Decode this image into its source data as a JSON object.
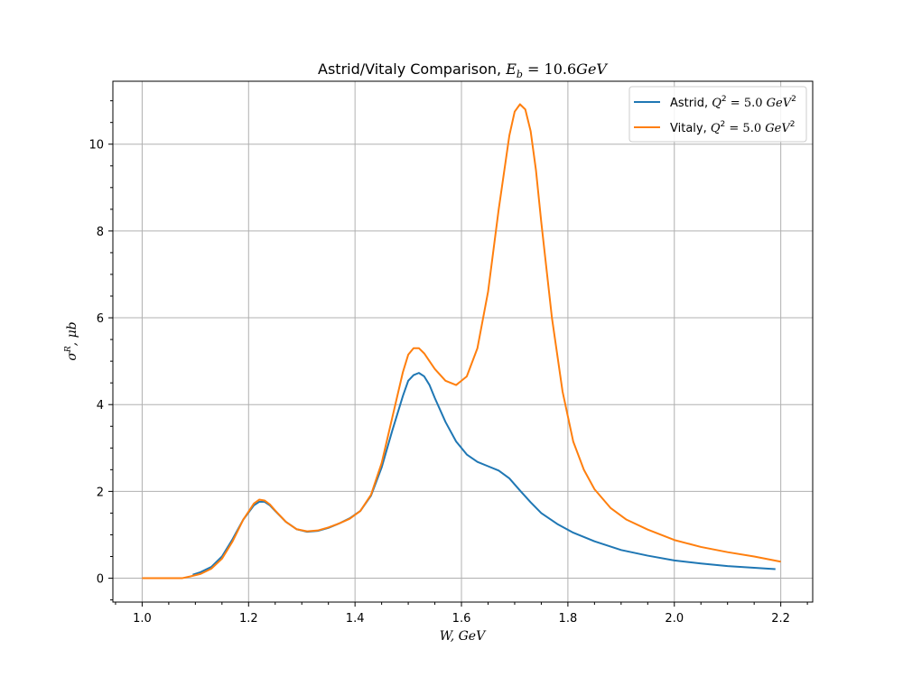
{
  "chart_data": {
    "type": "line",
    "title": "Astrid/Vitaly Comparison, E_b = 10.6GeV",
    "title_parts": {
      "prefix": "Astrid/Vitaly Comparison, ",
      "math_symbol": "E",
      "math_sub": "b",
      "math_rest": " = 10.6",
      "math_unit": "GeV"
    },
    "xlabel": "W, GeV",
    "ylabel": "σ^R, μb",
    "xlim": [
      0.945,
      2.26
    ],
    "ylim": [
      -0.55,
      11.45
    ],
    "xticks": [
      1.0,
      1.2,
      1.4,
      1.6,
      1.8,
      2.0,
      2.2
    ],
    "xtick_labels": [
      "1.0",
      "1.2",
      "1.4",
      "1.6",
      "1.8",
      "2.0",
      "2.2"
    ],
    "yticks": [
      0,
      2,
      4,
      6,
      8,
      10
    ],
    "ytick_labels": [
      "0",
      "2",
      "4",
      "6",
      "8",
      "10"
    ],
    "grid": true,
    "legend_position": "top-right",
    "series": [
      {
        "name": "Astrid, Q^2 = 5.0 GeV^2",
        "legend_prefix": "Astrid, ",
        "color": "#1f77b4",
        "x": [
          1.095,
          1.11,
          1.13,
          1.15,
          1.17,
          1.19,
          1.21,
          1.22,
          1.23,
          1.24,
          1.25,
          1.27,
          1.29,
          1.31,
          1.33,
          1.35,
          1.37,
          1.39,
          1.41,
          1.43,
          1.45,
          1.47,
          1.49,
          1.5,
          1.51,
          1.52,
          1.53,
          1.54,
          1.55,
          1.57,
          1.59,
          1.61,
          1.63,
          1.65,
          1.67,
          1.69,
          1.71,
          1.73,
          1.75,
          1.78,
          1.81,
          1.85,
          1.9,
          1.95,
          2.0,
          2.05,
          2.1,
          2.15,
          2.19
        ],
        "y": [
          0.08,
          0.14,
          0.26,
          0.5,
          0.9,
          1.35,
          1.68,
          1.76,
          1.76,
          1.68,
          1.55,
          1.3,
          1.13,
          1.07,
          1.09,
          1.16,
          1.26,
          1.38,
          1.55,
          1.9,
          2.55,
          3.4,
          4.2,
          4.55,
          4.68,
          4.73,
          4.65,
          4.45,
          4.15,
          3.6,
          3.15,
          2.85,
          2.68,
          2.58,
          2.48,
          2.3,
          2.02,
          1.75,
          1.5,
          1.25,
          1.05,
          0.85,
          0.65,
          0.52,
          0.41,
          0.34,
          0.28,
          0.24,
          0.21
        ]
      },
      {
        "name": "Vitaly, Q^2 = 5.0 GeV^2",
        "legend_prefix": "Vitaly, ",
        "color": "#ff7f0e",
        "x": [
          1.0,
          1.05,
          1.075,
          1.09,
          1.11,
          1.13,
          1.15,
          1.17,
          1.19,
          1.21,
          1.22,
          1.23,
          1.24,
          1.25,
          1.27,
          1.29,
          1.31,
          1.33,
          1.35,
          1.37,
          1.39,
          1.41,
          1.43,
          1.45,
          1.47,
          1.49,
          1.5,
          1.51,
          1.52,
          1.53,
          1.54,
          1.55,
          1.57,
          1.59,
          1.61,
          1.63,
          1.65,
          1.67,
          1.69,
          1.7,
          1.71,
          1.72,
          1.73,
          1.74,
          1.75,
          1.77,
          1.79,
          1.81,
          1.83,
          1.85,
          1.88,
          1.91,
          1.95,
          2.0,
          2.05,
          2.1,
          2.15,
          2.2
        ],
        "y": [
          0.0,
          0.0,
          0.0,
          0.04,
          0.1,
          0.22,
          0.45,
          0.85,
          1.35,
          1.72,
          1.81,
          1.79,
          1.7,
          1.56,
          1.3,
          1.13,
          1.08,
          1.1,
          1.17,
          1.26,
          1.37,
          1.55,
          1.92,
          2.65,
          3.7,
          4.75,
          5.15,
          5.3,
          5.3,
          5.18,
          5.0,
          4.82,
          4.55,
          4.45,
          4.65,
          5.3,
          6.6,
          8.5,
          10.2,
          10.75,
          10.92,
          10.8,
          10.3,
          9.4,
          8.2,
          6.0,
          4.3,
          3.15,
          2.5,
          2.05,
          1.62,
          1.35,
          1.12,
          0.88,
          0.72,
          0.6,
          0.5,
          0.38
        ]
      }
    ]
  }
}
